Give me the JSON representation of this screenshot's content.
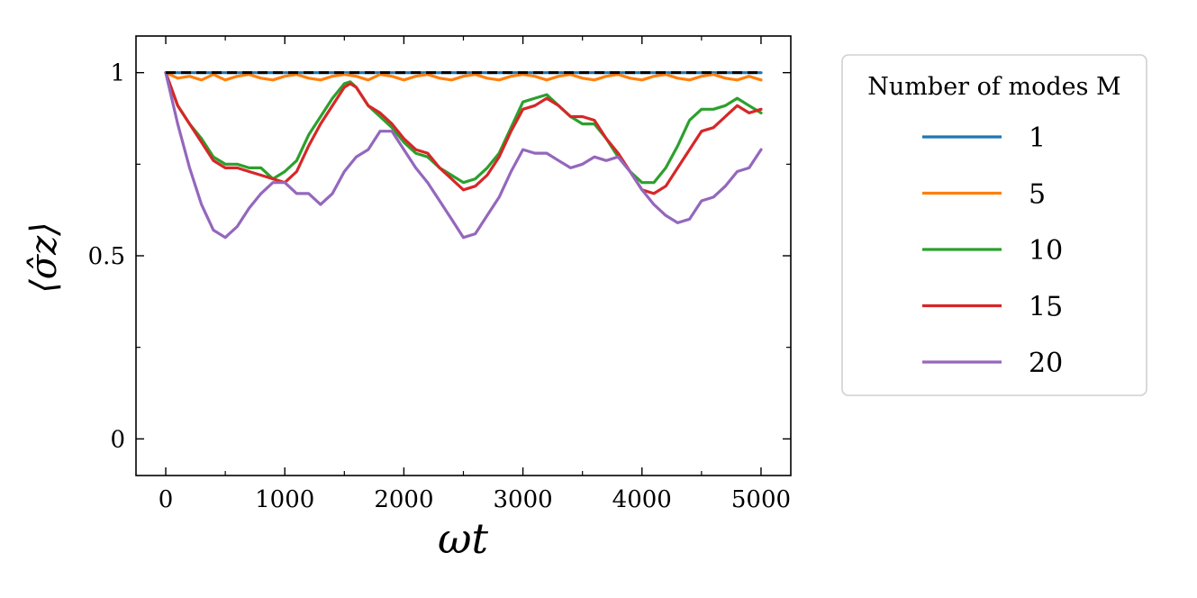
{
  "chart_data": {
    "type": "line",
    "xlabel": "ωt",
    "ylabel": "⟨σ̂z⟩",
    "xlim": [
      -250,
      5250
    ],
    "ylim": [
      -0.1,
      1.1
    ],
    "xticks": [
      0,
      1000,
      2000,
      3000,
      4000,
      5000
    ],
    "xtick_labels": [
      "0",
      "1000",
      "2000",
      "3000",
      "4000",
      "5000"
    ],
    "yticks": [
      0,
      0.5,
      1
    ],
    "ytick_labels": [
      "0",
      "0.5",
      "1"
    ],
    "y_minor_ticks": [
      0.25,
      0.75
    ],
    "x_minor_ticks": [
      500,
      1500,
      2500,
      3500,
      4500
    ],
    "grid": false,
    "legend": {
      "title": "Number of modes M",
      "placement": "outside-right"
    },
    "reference": {
      "x": [
        0,
        5000
      ],
      "y": [
        1,
        1
      ],
      "color": "#000000",
      "style": "dashed"
    },
    "series": [
      {
        "name": "1",
        "color": "#1f77b4",
        "x": [
          0,
          5000
        ],
        "y": [
          1.0,
          1.0
        ]
      },
      {
        "name": "5",
        "color": "#ff7f0e",
        "x": [
          0,
          100,
          200,
          300,
          400,
          500,
          600,
          700,
          800,
          900,
          1000,
          1100,
          1200,
          1300,
          1400,
          1500,
          1600,
          1700,
          1800,
          1900,
          2000,
          2100,
          2200,
          2300,
          2400,
          2500,
          2600,
          2700,
          2800,
          2900,
          3000,
          3100,
          3200,
          3300,
          3400,
          3500,
          3600,
          3700,
          3800,
          3900,
          4000,
          4100,
          4200,
          4300,
          4400,
          4500,
          4600,
          4700,
          4800,
          4900,
          5000
        ],
        "y": [
          1.0,
          0.985,
          0.99,
          0.98,
          0.995,
          0.98,
          0.99,
          0.995,
          0.985,
          0.98,
          0.99,
          0.995,
          0.985,
          0.98,
          0.99,
          0.995,
          0.99,
          0.98,
          0.995,
          0.99,
          0.98,
          0.99,
          0.995,
          0.985,
          0.98,
          0.99,
          0.995,
          0.985,
          0.98,
          0.99,
          0.995,
          0.99,
          0.98,
          0.99,
          0.995,
          0.985,
          0.98,
          0.99,
          0.995,
          0.985,
          0.98,
          0.99,
          0.995,
          0.985,
          0.98,
          0.99,
          0.995,
          0.985,
          0.98,
          0.99,
          0.98
        ]
      },
      {
        "name": "10",
        "color": "#2ca02c",
        "x": [
          0,
          100,
          200,
          300,
          400,
          500,
          600,
          700,
          800,
          900,
          1000,
          1100,
          1200,
          1300,
          1400,
          1500,
          1550,
          1600,
          1700,
          1800,
          1900,
          2000,
          2100,
          2200,
          2300,
          2400,
          2500,
          2600,
          2700,
          2800,
          2900,
          3000,
          3100,
          3200,
          3300,
          3400,
          3500,
          3600,
          3700,
          3800,
          3900,
          4000,
          4100,
          4200,
          4300,
          4400,
          4500,
          4600,
          4700,
          4800,
          4900,
          5000
        ],
        "y": [
          1.0,
          0.91,
          0.86,
          0.82,
          0.77,
          0.75,
          0.75,
          0.74,
          0.74,
          0.71,
          0.73,
          0.76,
          0.83,
          0.88,
          0.93,
          0.97,
          0.975,
          0.96,
          0.91,
          0.88,
          0.85,
          0.81,
          0.78,
          0.77,
          0.74,
          0.72,
          0.7,
          0.71,
          0.74,
          0.78,
          0.85,
          0.92,
          0.93,
          0.94,
          0.91,
          0.88,
          0.86,
          0.86,
          0.82,
          0.77,
          0.73,
          0.7,
          0.7,
          0.74,
          0.8,
          0.87,
          0.9,
          0.9,
          0.91,
          0.93,
          0.91,
          0.89
        ]
      },
      {
        "name": "15",
        "color": "#d62728",
        "x": [
          0,
          100,
          200,
          300,
          400,
          500,
          600,
          700,
          800,
          900,
          1000,
          1100,
          1200,
          1300,
          1400,
          1500,
          1550,
          1600,
          1700,
          1800,
          1900,
          2000,
          2100,
          2200,
          2300,
          2400,
          2500,
          2600,
          2700,
          2800,
          2900,
          3000,
          3100,
          3200,
          3300,
          3400,
          3500,
          3600,
          3700,
          3800,
          3900,
          4000,
          4100,
          4200,
          4300,
          4400,
          4500,
          4600,
          4700,
          4800,
          4900,
          5000
        ],
        "y": [
          1.0,
          0.91,
          0.86,
          0.81,
          0.76,
          0.74,
          0.74,
          0.73,
          0.72,
          0.71,
          0.7,
          0.73,
          0.8,
          0.86,
          0.91,
          0.96,
          0.97,
          0.96,
          0.91,
          0.89,
          0.86,
          0.82,
          0.79,
          0.78,
          0.74,
          0.71,
          0.68,
          0.69,
          0.72,
          0.77,
          0.84,
          0.9,
          0.91,
          0.93,
          0.91,
          0.88,
          0.88,
          0.87,
          0.82,
          0.78,
          0.73,
          0.68,
          0.67,
          0.69,
          0.74,
          0.79,
          0.84,
          0.85,
          0.88,
          0.91,
          0.89,
          0.9
        ]
      },
      {
        "name": "20",
        "color": "#9467bd",
        "x": [
          0,
          100,
          200,
          300,
          400,
          500,
          600,
          700,
          800,
          900,
          1000,
          1100,
          1200,
          1300,
          1400,
          1500,
          1600,
          1700,
          1800,
          1900,
          2000,
          2100,
          2200,
          2300,
          2400,
          2500,
          2600,
          2700,
          2800,
          2900,
          3000,
          3100,
          3200,
          3300,
          3400,
          3500,
          3600,
          3700,
          3800,
          3900,
          4000,
          4100,
          4200,
          4300,
          4400,
          4500,
          4600,
          4700,
          4800,
          4900,
          5000
        ],
        "y": [
          1.0,
          0.86,
          0.74,
          0.64,
          0.57,
          0.55,
          0.58,
          0.63,
          0.67,
          0.7,
          0.7,
          0.67,
          0.67,
          0.64,
          0.67,
          0.73,
          0.77,
          0.79,
          0.84,
          0.84,
          0.79,
          0.74,
          0.7,
          0.65,
          0.6,
          0.55,
          0.56,
          0.61,
          0.66,
          0.73,
          0.79,
          0.78,
          0.78,
          0.76,
          0.74,
          0.75,
          0.77,
          0.76,
          0.77,
          0.73,
          0.68,
          0.64,
          0.61,
          0.59,
          0.6,
          0.65,
          0.66,
          0.69,
          0.73,
          0.74,
          0.79
        ]
      }
    ]
  }
}
